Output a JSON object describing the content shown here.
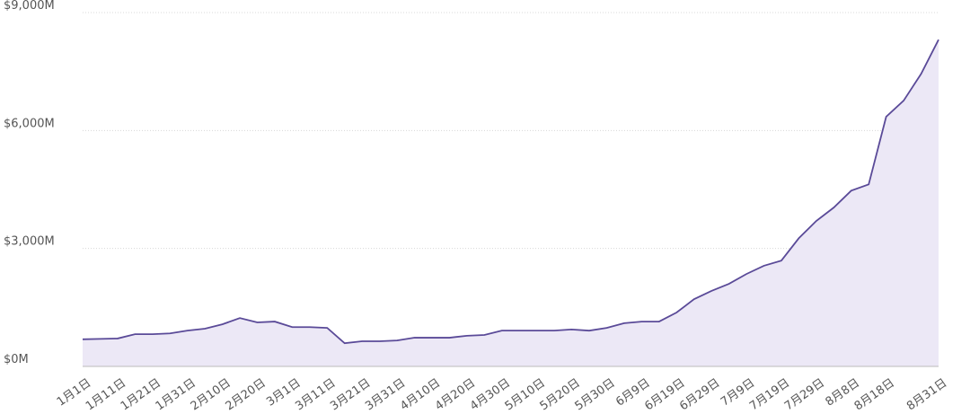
{
  "chart_data": {
    "type": "area",
    "categories": [
      "1月1日",
      null,
      "1月11日",
      null,
      "1月21日",
      null,
      "1月31日",
      null,
      "2月10日",
      null,
      "2月20日",
      null,
      "3月1日",
      null,
      "3月11日",
      null,
      "3月21日",
      null,
      "3月31日",
      null,
      "4月10日",
      null,
      "4月20日",
      null,
      "4月30日",
      null,
      "5月10日",
      null,
      "5月20日",
      null,
      "5月30日",
      null,
      "6月9日",
      null,
      "6月19日",
      null,
      "6月29日",
      null,
      "7月9日",
      null,
      "7月19日",
      null,
      "7月29日",
      null,
      "8月8日",
      null,
      "8月18日",
      null,
      null,
      "8月31日"
    ],
    "values": [
      690,
      700,
      710,
      820,
      820,
      840,
      910,
      960,
      1070,
      1230,
      1120,
      1140,
      1000,
      1000,
      980,
      590,
      640,
      640,
      660,
      730,
      730,
      730,
      780,
      800,
      910,
      910,
      910,
      910,
      940,
      910,
      980,
      1100,
      1140,
      1140,
      1370,
      1710,
      1920,
      2100,
      2350,
      2560,
      2690,
      3260,
      3700,
      4040,
      4470,
      4630,
      6350,
      6760,
      7440,
      8310
    ],
    "color": "#5a4a98",
    "fill": "#ece8f6",
    "ylim": [
      0,
      9000
    ],
    "yticks": [
      {
        "value": 0,
        "label": "$0M"
      },
      {
        "value": 3000,
        "label": "$3,000M"
      },
      {
        "value": 6000,
        "label": "$6,000M"
      },
      {
        "value": 9000,
        "label": "$9,000M"
      }
    ],
    "grid": true
  }
}
